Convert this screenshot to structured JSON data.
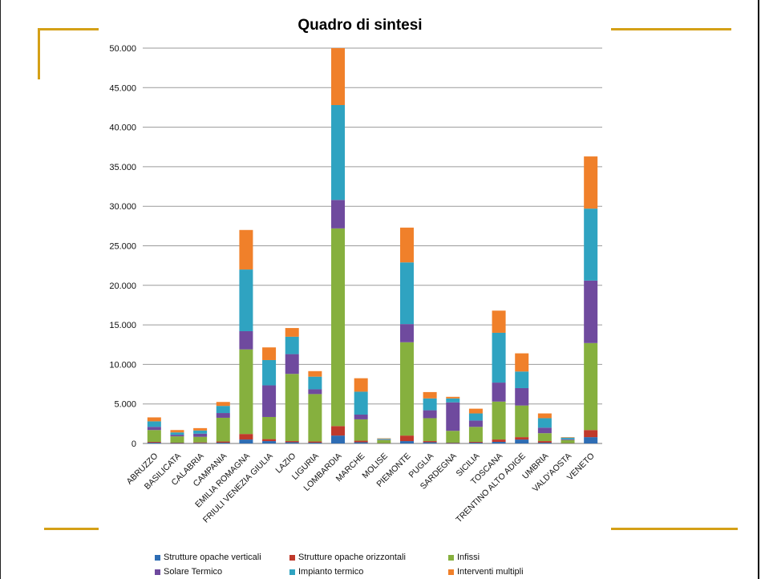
{
  "chart_data": {
    "type": "bar",
    "stacked": true,
    "title": "Quadro di sintesi",
    "xlabel": "",
    "ylabel": "",
    "ylim": [
      0,
      50000
    ],
    "y_ticks": [
      "0",
      "5.000",
      "10.000",
      "15.000",
      "20.000",
      "25.000",
      "30.000",
      "35.000",
      "40.000",
      "45.000",
      "50.000"
    ],
    "y_tick_values": [
      0,
      5000,
      10000,
      15000,
      20000,
      25000,
      30000,
      35000,
      40000,
      45000,
      50000
    ],
    "grid": true,
    "legend_position": "bottom",
    "categories": [
      "ABRUZZO",
      "BASILICATA",
      "CALABRIA",
      "CAMPANIA",
      "EMILIA ROMAGNA",
      "FRIULI VENEZIA GIULIA",
      "LAZIO",
      "LIGURIA",
      "LOMBARDIA",
      "MARCHE",
      "MOLISE",
      "PIEMONTE",
      "PUGLIA",
      "SARDEGNA",
      "SICILIA",
      "TOSCANA",
      "TRENTINO ALTO ADIGE",
      "UMBRIA",
      "VALD'AOSTA",
      "VENETO"
    ],
    "series": [
      {
        "name": "Strutture opache verticali",
        "color": "#2e6db4",
        "values": [
          100,
          50,
          60,
          100,
          500,
          300,
          150,
          100,
          1000,
          150,
          20,
          300,
          150,
          50,
          100,
          200,
          500,
          100,
          20,
          800
        ]
      },
      {
        "name": "Strutture opache orizzontali",
        "color": "#c0392b",
        "values": [
          100,
          50,
          80,
          150,
          700,
          250,
          150,
          150,
          1200,
          200,
          20,
          700,
          150,
          50,
          100,
          300,
          300,
          200,
          20,
          900
        ]
      },
      {
        "name": "Infissi",
        "color": "#86b03e",
        "values": [
          1500,
          800,
          700,
          3000,
          10700,
          2800,
          8500,
          6000,
          25000,
          2700,
          400,
          11800,
          2900,
          1500,
          1900,
          4800,
          4000,
          1000,
          400,
          11000
        ]
      },
      {
        "name": "Solare Termico",
        "color": "#6f4a9e",
        "values": [
          400,
          200,
          400,
          600,
          2300,
          4000,
          2500,
          600,
          3600,
          600,
          50,
          2300,
          1000,
          3600,
          800,
          2400,
          2200,
          700,
          100,
          7900
        ]
      },
      {
        "name": "Impianto termico",
        "color": "#2fa3c1",
        "values": [
          700,
          300,
          400,
          900,
          7800,
          3200,
          2200,
          1600,
          12000,
          2900,
          100,
          7800,
          1500,
          500,
          900,
          6300,
          2100,
          1200,
          200,
          9100
        ]
      },
      {
        "name": "Interventi multipli",
        "color": "#f0802a",
        "values": [
          500,
          300,
          300,
          500,
          5000,
          1600,
          1100,
          700,
          7200,
          1700,
          60,
          4400,
          800,
          200,
          600,
          2800,
          2300,
          600,
          60,
          6600
        ]
      }
    ]
  }
}
